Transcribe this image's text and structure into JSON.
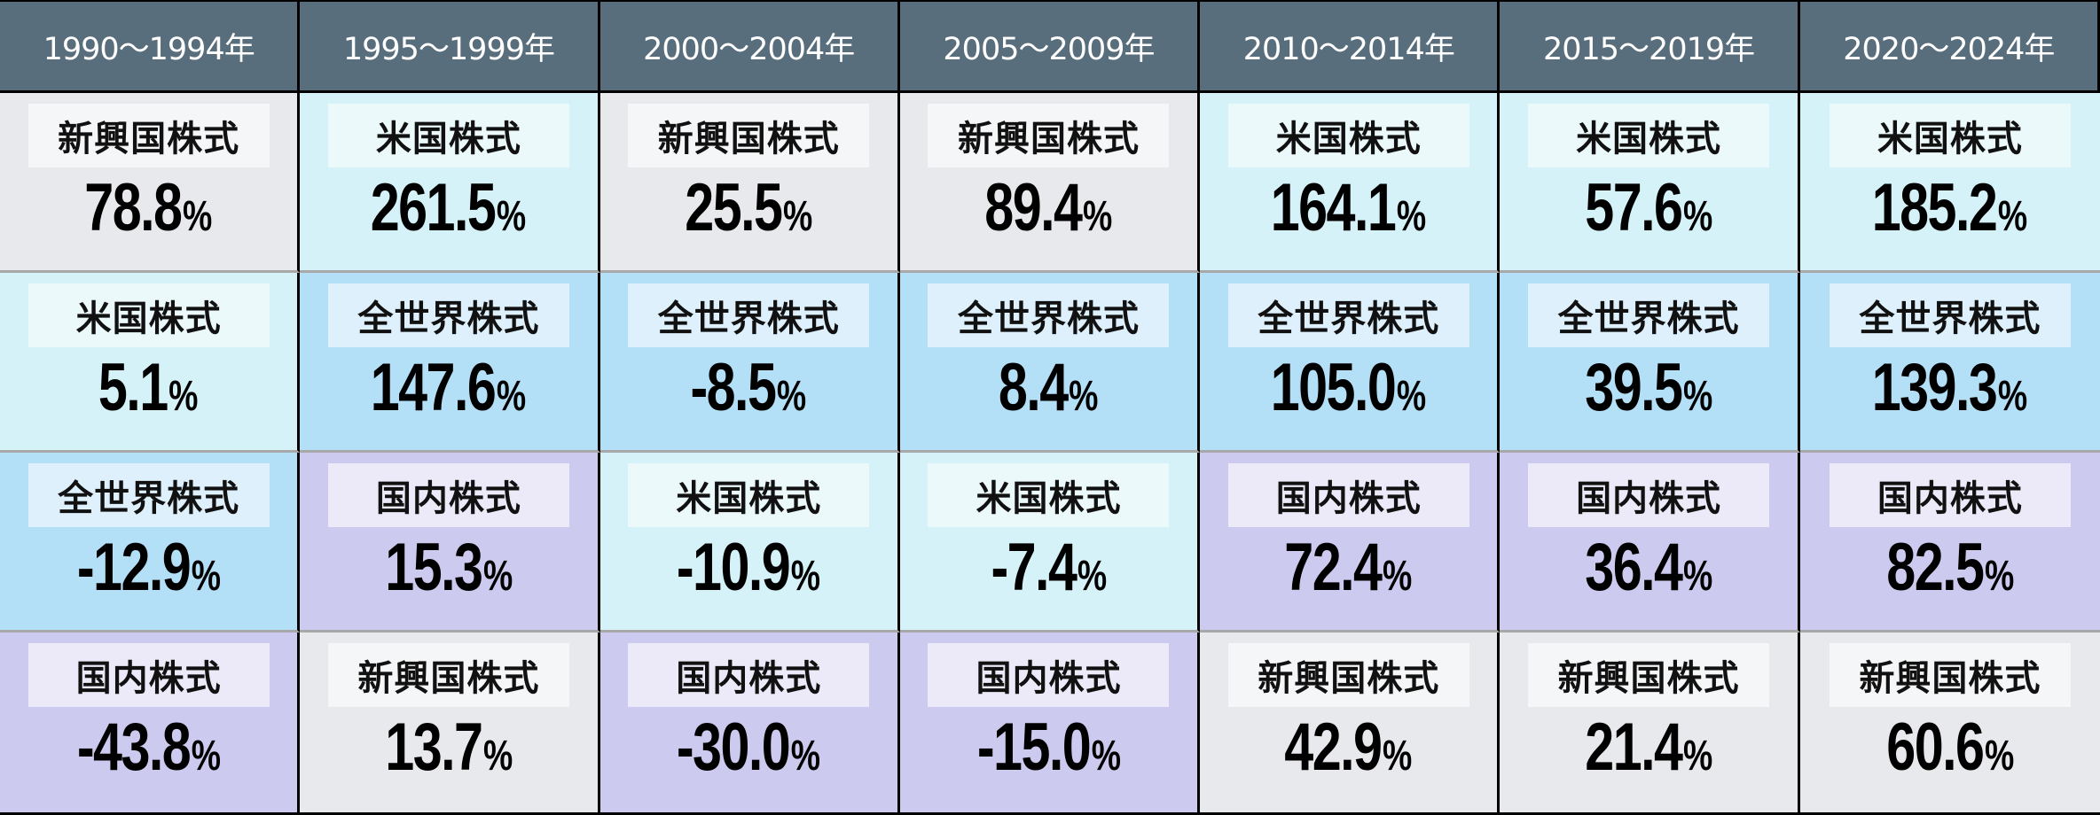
{
  "colors": {
    "header_bg": "#586E7D",
    "新興国株式": {
      "cell": "#E8E9ED",
      "label": "#F5F6F8"
    },
    "米国株式": {
      "cell": "#D4F2F8",
      "label": "#ECF9FB"
    },
    "全世界株式": {
      "cell": "#B3DFF7",
      "label": "#DDF0FC"
    },
    "国内株式": {
      "cell": "#CDCAF0",
      "label": "#ECEAF8"
    }
  },
  "header": {
    "periods": [
      "1990〜1994年",
      "1995〜1999年",
      "2000〜2004年",
      "2005〜2009年",
      "2010〜2014年",
      "2015〜2019年",
      "2020〜2024年"
    ]
  },
  "columns": [
    {
      "period": "1990〜1994年",
      "ranks": [
        {
          "asset": "新興国株式",
          "value": "78.8",
          "unit": "%"
        },
        {
          "asset": "米国株式",
          "value": "5.1",
          "unit": "%"
        },
        {
          "asset": "全世界株式",
          "value": "-12.9",
          "unit": "%"
        },
        {
          "asset": "国内株式",
          "value": "-43.8",
          "unit": "%"
        }
      ]
    },
    {
      "period": "1995〜1999年",
      "ranks": [
        {
          "asset": "米国株式",
          "value": "261.5",
          "unit": "%"
        },
        {
          "asset": "全世界株式",
          "value": "147.6",
          "unit": "%"
        },
        {
          "asset": "国内株式",
          "value": "15.3",
          "unit": "%"
        },
        {
          "asset": "新興国株式",
          "value": "13.7",
          "unit": "%"
        }
      ]
    },
    {
      "period": "2000〜2004年",
      "ranks": [
        {
          "asset": "新興国株式",
          "value": "25.5",
          "unit": "%"
        },
        {
          "asset": "全世界株式",
          "value": "-8.5",
          "unit": "%"
        },
        {
          "asset": "米国株式",
          "value": "-10.9",
          "unit": "%"
        },
        {
          "asset": "国内株式",
          "value": "-30.0",
          "unit": "%"
        }
      ]
    },
    {
      "period": "2005〜2009年",
      "ranks": [
        {
          "asset": "新興国株式",
          "value": "89.4",
          "unit": "%"
        },
        {
          "asset": "全世界株式",
          "value": "8.4",
          "unit": "%"
        },
        {
          "asset": "米国株式",
          "value": "-7.4",
          "unit": "%"
        },
        {
          "asset": "国内株式",
          "value": "-15.0",
          "unit": "%"
        }
      ]
    },
    {
      "period": "2010〜2014年",
      "ranks": [
        {
          "asset": "米国株式",
          "value": "164.1",
          "unit": "%"
        },
        {
          "asset": "全世界株式",
          "value": "105.0",
          "unit": "%"
        },
        {
          "asset": "国内株式",
          "value": "72.4",
          "unit": "%"
        },
        {
          "asset": "新興国株式",
          "value": "42.9",
          "unit": "%"
        }
      ]
    },
    {
      "period": "2015〜2019年",
      "ranks": [
        {
          "asset": "米国株式",
          "value": "57.6",
          "unit": "%"
        },
        {
          "asset": "全世界株式",
          "value": "39.5",
          "unit": "%"
        },
        {
          "asset": "国内株式",
          "value": "36.4",
          "unit": "%"
        },
        {
          "asset": "新興国株式",
          "value": "21.4",
          "unit": "%"
        }
      ]
    },
    {
      "period": "2020〜2024年",
      "ranks": [
        {
          "asset": "米国株式",
          "value": "185.2",
          "unit": "%"
        },
        {
          "asset": "全世界株式",
          "value": "139.3",
          "unit": "%"
        },
        {
          "asset": "国内株式",
          "value": "82.5",
          "unit": "%"
        },
        {
          "asset": "新興国株式",
          "value": "60.6",
          "unit": "%"
        }
      ]
    }
  ],
  "chart_data": {
    "type": "table",
    "title": "",
    "description": "5-year period return ranking by asset class (rank 1 at top)",
    "categories": [
      "1990〜1994年",
      "1995〜1999年",
      "2000〜2004年",
      "2005〜2009年",
      "2010〜2014年",
      "2015〜2019年",
      "2020〜2024年"
    ],
    "series": [
      {
        "name": "米国株式",
        "values": [
          5.1,
          261.5,
          -10.9,
          -7.4,
          164.1,
          57.6,
          185.2
        ]
      },
      {
        "name": "全世界株式",
        "values": [
          -12.9,
          147.6,
          -8.5,
          8.4,
          105.0,
          39.5,
          139.3
        ]
      },
      {
        "name": "国内株式",
        "values": [
          -43.8,
          15.3,
          -30.0,
          -15.0,
          72.4,
          36.4,
          82.5
        ]
      },
      {
        "name": "新興国株式",
        "values": [
          78.8,
          13.7,
          25.5,
          89.4,
          42.9,
          21.4,
          60.6
        ]
      }
    ],
    "unit": "%",
    "ranking_order": [
      [
        "新興国株式",
        "米国株式",
        "全世界株式",
        "国内株式"
      ],
      [
        "米国株式",
        "全世界株式",
        "国内株式",
        "新興国株式"
      ],
      [
        "新興国株式",
        "全世界株式",
        "米国株式",
        "国内株式"
      ],
      [
        "新興国株式",
        "全世界株式",
        "米国株式",
        "国内株式"
      ],
      [
        "米国株式",
        "全世界株式",
        "国内株式",
        "新興国株式"
      ],
      [
        "米国株式",
        "全世界株式",
        "国内株式",
        "新興国株式"
      ],
      [
        "米国株式",
        "全世界株式",
        "国内株式",
        "新興国株式"
      ]
    ]
  }
}
